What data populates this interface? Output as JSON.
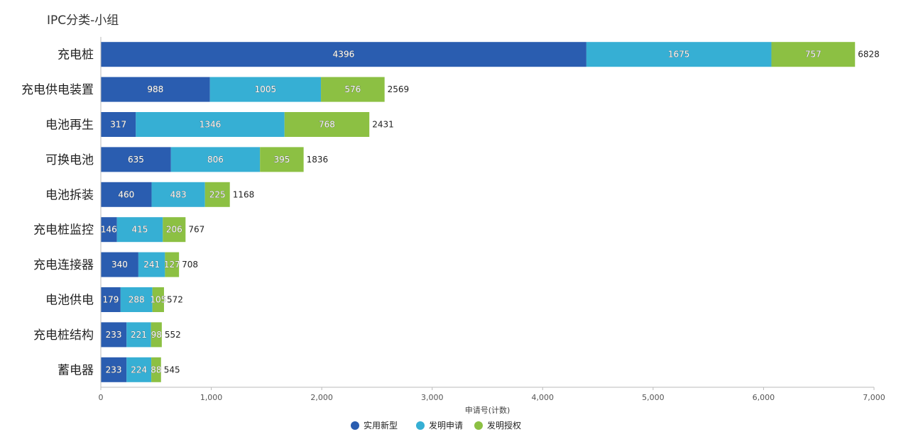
{
  "chart_data": {
    "type": "bar",
    "orientation": "horizontal",
    "stacked": true,
    "title": "IPC分类-小组",
    "xlabel": "申请号(计数)",
    "ylabel": "",
    "xlim": [
      0,
      7000
    ],
    "x_ticks": [
      "0",
      "1,000",
      "2,000",
      "3,000",
      "4,000",
      "5,000",
      "6,000",
      "7,000"
    ],
    "categories": [
      "充电桩",
      "充电供电装置",
      "电池再生",
      "可换电池",
      "电池拆装",
      "充电桩监控",
      "充电连接器",
      "电池供电",
      "充电桩结构",
      "蓄电器"
    ],
    "series": [
      {
        "name": "实用新型",
        "color": "#2a5db0",
        "values": [
          4396,
          988,
          317,
          635,
          460,
          146,
          340,
          179,
          233,
          233
        ]
      },
      {
        "name": "发明申请",
        "color": "#36afd4",
        "values": [
          1675,
          1005,
          1346,
          806,
          483,
          415,
          241,
          288,
          221,
          224
        ]
      },
      {
        "name": "发明授权",
        "color": "#8cc043",
        "values": [
          757,
          576,
          768,
          395,
          225,
          206,
          127,
          105,
          98,
          88
        ]
      }
    ],
    "totals": [
      6828,
      2569,
      2431,
      1836,
      1168,
      767,
      708,
      572,
      552,
      545
    ],
    "legend": "bottom-center",
    "grid": false
  }
}
